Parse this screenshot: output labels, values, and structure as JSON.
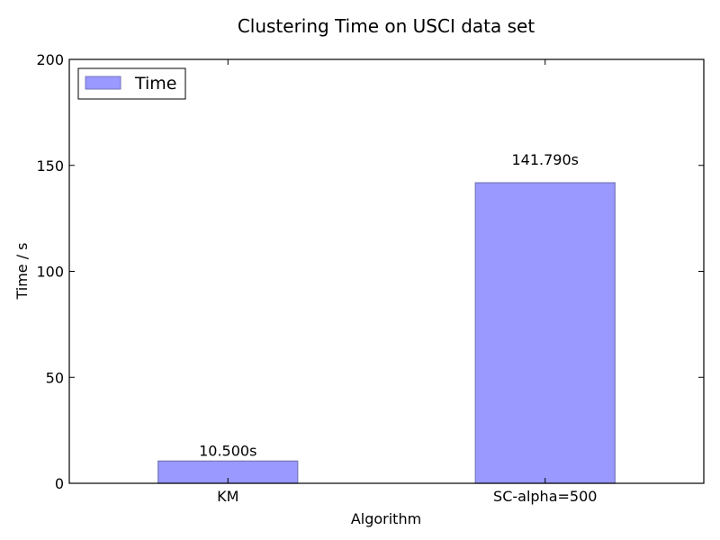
{
  "chart_data": {
    "type": "bar",
    "title": "Clustering Time on USCI data set",
    "xlabel": "Algorithm",
    "ylabel": "Time / s",
    "categories": [
      "KM",
      "SC-alpha=500"
    ],
    "series": [
      {
        "name": "Time",
        "values": [
          10.5,
          141.79
        ]
      }
    ],
    "data_labels": [
      "10.500s",
      "141.790s"
    ],
    "ylim": [
      0,
      200
    ],
    "yticks": [
      0,
      50,
      100,
      150,
      200
    ],
    "ytick_labels": [
      "0",
      "50",
      "100",
      "150",
      "200"
    ],
    "grid": false,
    "legend_position": "top-left",
    "colors": {
      "bar_fill": "#9999ff",
      "bar_edge": "#7777bb"
    }
  }
}
